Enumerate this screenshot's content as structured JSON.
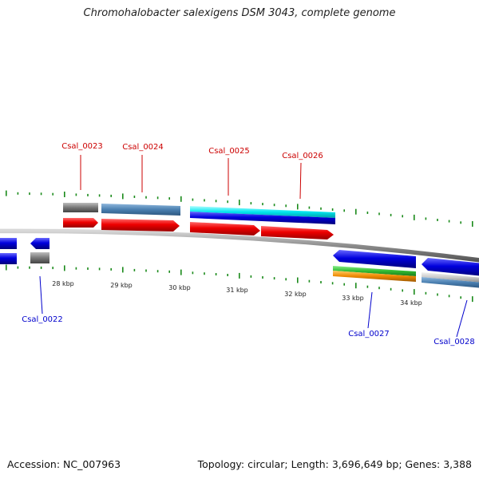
{
  "title": "Chromohalobacter salexigens DSM 3043, complete genome",
  "footer": {
    "accession": "Accession: NC_007963",
    "stats": "Topology: circular; Length: 3,696,649 bp; Genes: 3,388"
  },
  "scale": {
    "unit_labels": [
      "28 kbp",
      "29 kbp",
      "30 kbp",
      "31 kbp",
      "32 kbp",
      "33 kbp",
      "34 kbp"
    ]
  },
  "genes": {
    "forward": [
      "Csal_0023",
      "Csal_0024",
      "Csal_0025",
      "Csal_0026"
    ],
    "reverse": [
      "Csal_0022",
      "Csal_0027",
      "Csal_0028"
    ]
  },
  "colors": {
    "forward_label": "#cc0000",
    "reverse_label": "#0000cc",
    "cds": "#ee0000",
    "reverse_cds": "#0000dd",
    "gene": "#4a7fb0",
    "pseudo": "#777777",
    "rrna": "#00e5ee",
    "tick": "#1a8a1a",
    "backbone": "#8a8a8a",
    "green_feature": "#33bb33",
    "orange_feature": "#ee8800"
  }
}
